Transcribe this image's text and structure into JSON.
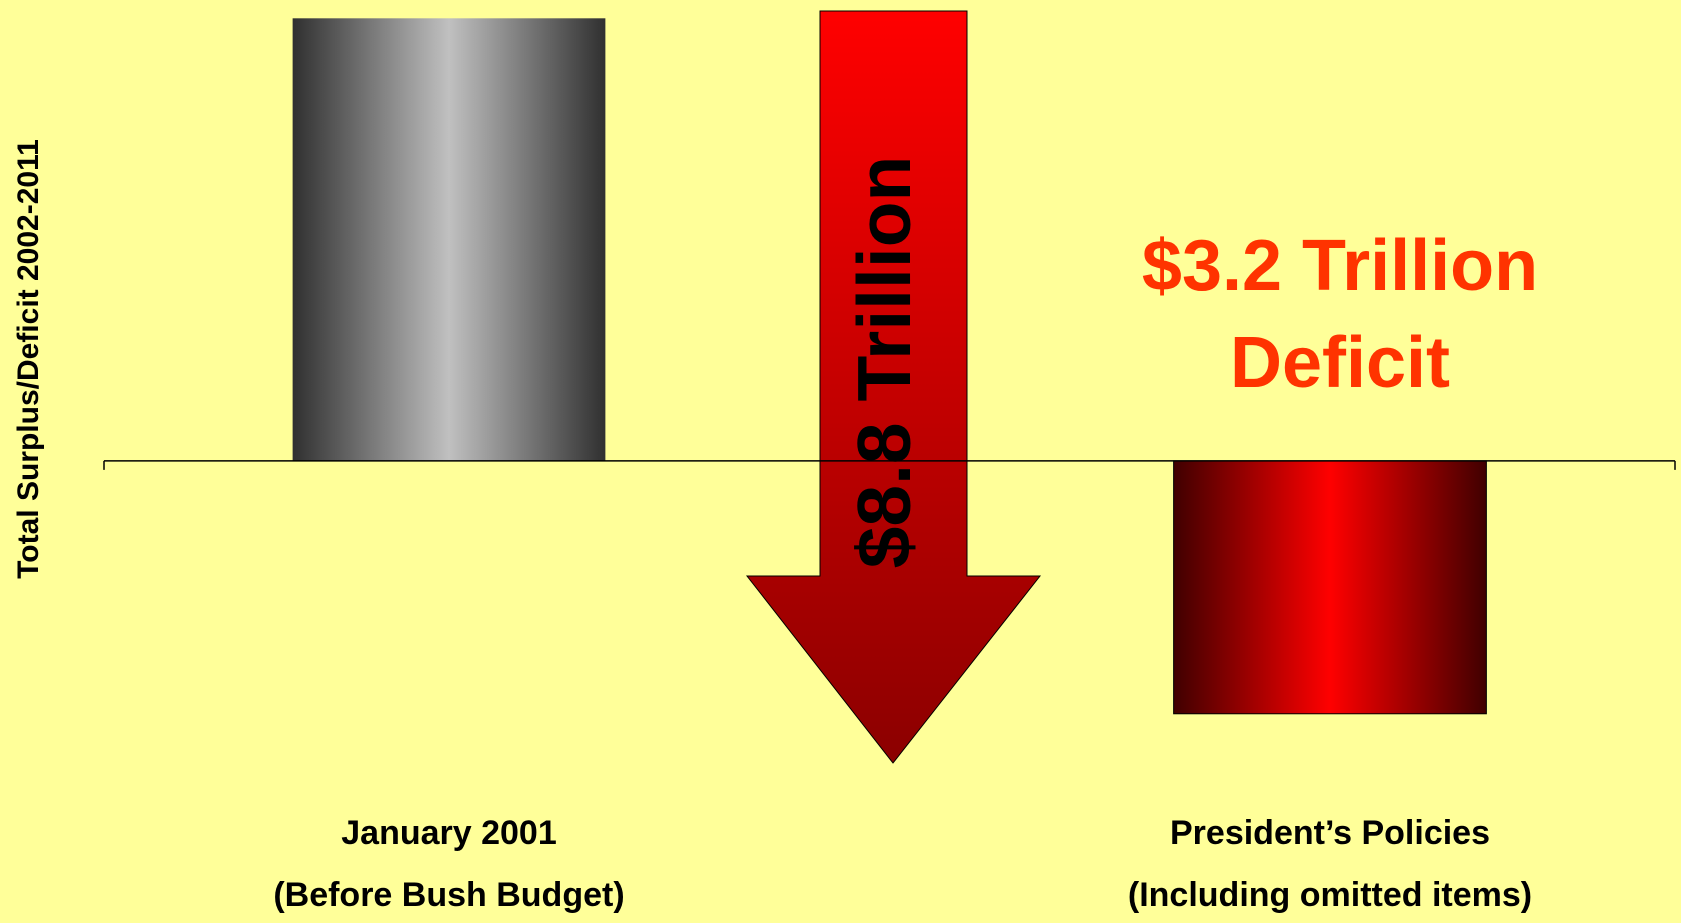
{
  "chart_data": {
    "type": "bar",
    "y_label": "Total Surplus/Deficit 2002-2011",
    "categories": [
      "January 2001\n(Before Bush Budget)",
      "President’s Policies\n(Including omitted items)"
    ],
    "values": [
      5.6,
      -3.2
    ],
    "colors": [
      "#c0c0c0",
      "#ff0000"
    ],
    "ylim": [
      -4,
      5.8
    ],
    "arrow_label": "$8.8 Trillion",
    "deficit_label": [
      "$3.2 Trillion",
      "Deficit"
    ]
  }
}
